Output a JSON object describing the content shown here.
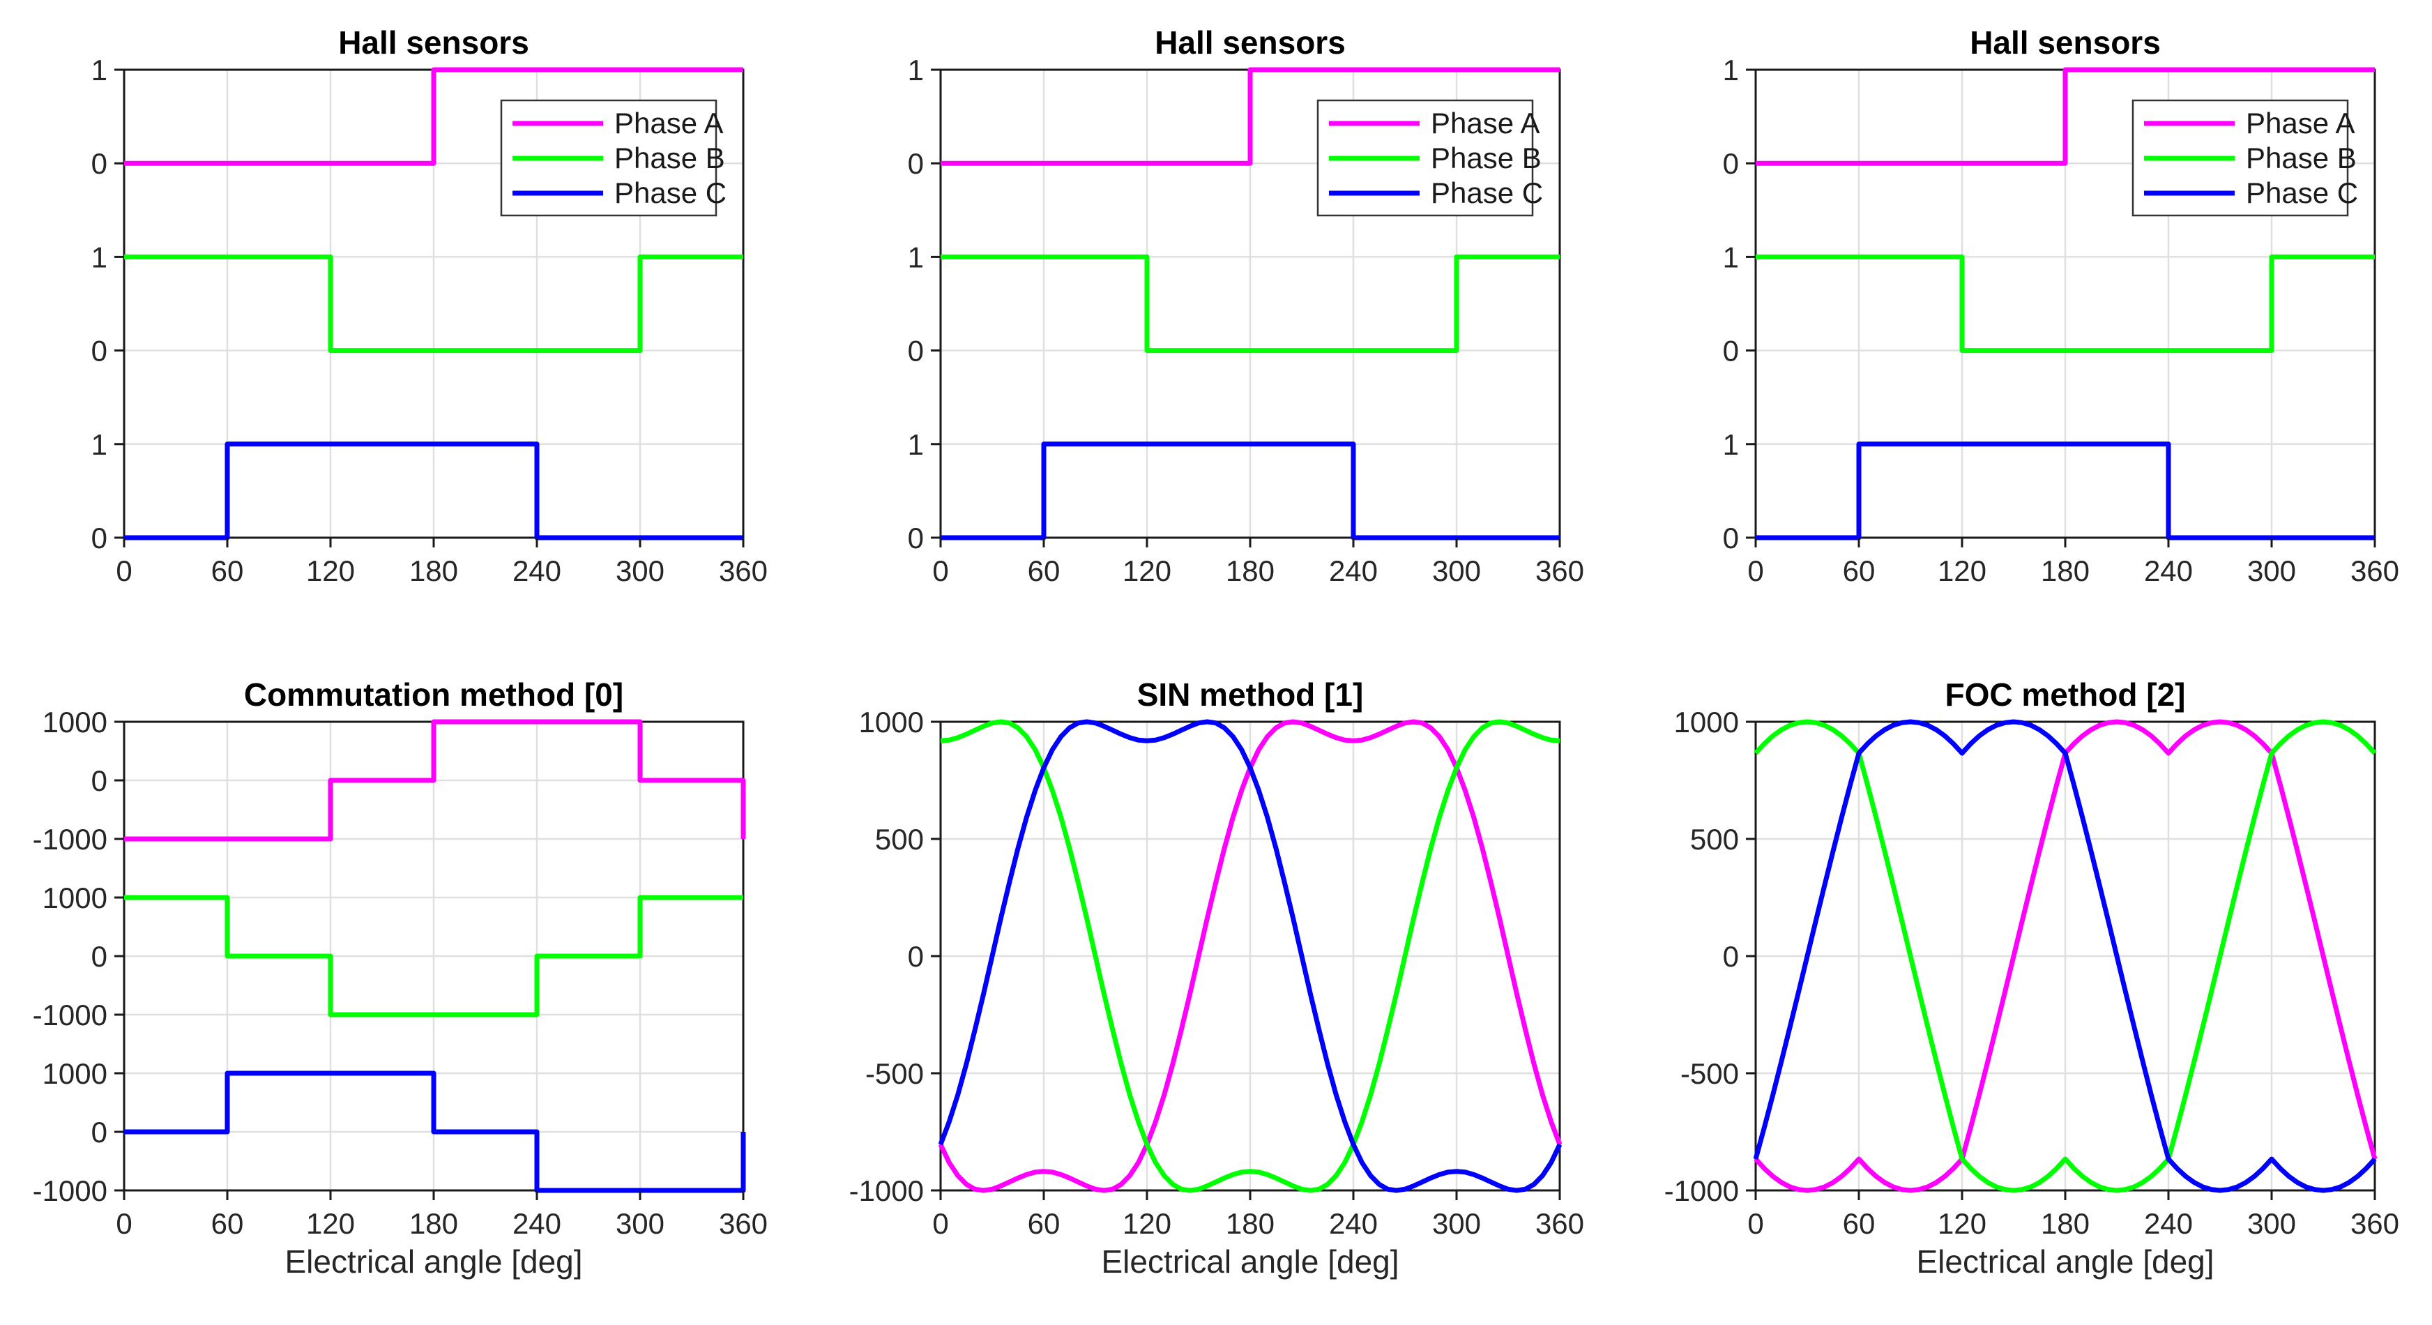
{
  "figure": {
    "xlabel": "Electrical angle [deg]",
    "background": "#FFFFFF"
  },
  "colors": {
    "phase_a": "#FF00FF",
    "phase_b": "#00FF00",
    "phase_c": "#0000FF",
    "grid": "#E0E0E0",
    "axis": "#1A1A1A",
    "tick_label": "#262626",
    "title": "#000000",
    "legend_border": "#333333"
  },
  "legend": {
    "items": [
      "Phase A",
      "Phase B",
      "Phase C"
    ]
  },
  "chart_data": [
    {
      "id": "hall-1",
      "type": "line",
      "title": "Hall sensors",
      "row": 0,
      "col": 0,
      "xlim": [
        0,
        360
      ],
      "x_ticks": [
        0,
        60,
        120,
        180,
        240,
        300,
        360
      ],
      "y_axis": "bands",
      "band_ticks": [
        1,
        0
      ],
      "band_tick_labels": [
        "1",
        "0",
        "1",
        "0",
        "1",
        "0"
      ],
      "legend": true,
      "show_xlabel": false,
      "grid": true,
      "series": [
        {
          "id": "phase-a",
          "name": "Phase A",
          "color": "#FF00FF",
          "band": 0,
          "points": [
            [
              0,
              0
            ],
            [
              180,
              0
            ],
            [
              180,
              1
            ],
            [
              360,
              1
            ]
          ]
        },
        {
          "id": "phase-b",
          "name": "Phase B",
          "color": "#00FF00",
          "band": 1,
          "points": [
            [
              0,
              1
            ],
            [
              120,
              1
            ],
            [
              120,
              0
            ],
            [
              300,
              0
            ],
            [
              300,
              1
            ],
            [
              360,
              1
            ]
          ]
        },
        {
          "id": "phase-c",
          "name": "Phase C",
          "color": "#0000FF",
          "band": 2,
          "points": [
            [
              0,
              0
            ],
            [
              60,
              0
            ],
            [
              60,
              1
            ],
            [
              240,
              1
            ],
            [
              240,
              0
            ],
            [
              360,
              0
            ]
          ]
        }
      ]
    },
    {
      "id": "hall-2",
      "type": "line",
      "title": "Hall sensors",
      "row": 0,
      "col": 1,
      "xlim": [
        0,
        360
      ],
      "x_ticks": [
        0,
        60,
        120,
        180,
        240,
        300,
        360
      ],
      "y_axis": "bands",
      "band_ticks": [
        1,
        0
      ],
      "band_tick_labels": [
        "1",
        "0",
        "1",
        "0",
        "1",
        "0"
      ],
      "legend": true,
      "show_xlabel": false,
      "grid": true,
      "series": [
        {
          "id": "phase-a",
          "name": "Phase A",
          "color": "#FF00FF",
          "band": 0,
          "points": [
            [
              0,
              0
            ],
            [
              180,
              0
            ],
            [
              180,
              1
            ],
            [
              360,
              1
            ]
          ]
        },
        {
          "id": "phase-b",
          "name": "Phase B",
          "color": "#00FF00",
          "band": 1,
          "points": [
            [
              0,
              1
            ],
            [
              120,
              1
            ],
            [
              120,
              0
            ],
            [
              300,
              0
            ],
            [
              300,
              1
            ],
            [
              360,
              1
            ]
          ]
        },
        {
          "id": "phase-c",
          "name": "Phase C",
          "color": "#0000FF",
          "band": 2,
          "points": [
            [
              0,
              0
            ],
            [
              60,
              0
            ],
            [
              60,
              1
            ],
            [
              240,
              1
            ],
            [
              240,
              0
            ],
            [
              360,
              0
            ]
          ]
        }
      ]
    },
    {
      "id": "hall-3",
      "type": "line",
      "title": "Hall sensors",
      "row": 0,
      "col": 2,
      "xlim": [
        0,
        360
      ],
      "x_ticks": [
        0,
        60,
        120,
        180,
        240,
        300,
        360
      ],
      "y_axis": "bands",
      "band_ticks": [
        1,
        0
      ],
      "band_tick_labels": [
        "1",
        "0",
        "1",
        "0",
        "1",
        "0"
      ],
      "legend": true,
      "show_xlabel": false,
      "grid": true,
      "series": [
        {
          "id": "phase-a",
          "name": "Phase A",
          "color": "#FF00FF",
          "band": 0,
          "points": [
            [
              0,
              0
            ],
            [
              180,
              0
            ],
            [
              180,
              1
            ],
            [
              360,
              1
            ]
          ]
        },
        {
          "id": "phase-b",
          "name": "Phase B",
          "color": "#00FF00",
          "band": 1,
          "points": [
            [
              0,
              1
            ],
            [
              120,
              1
            ],
            [
              120,
              0
            ],
            [
              300,
              0
            ],
            [
              300,
              1
            ],
            [
              360,
              1
            ]
          ]
        },
        {
          "id": "phase-c",
          "name": "Phase C",
          "color": "#0000FF",
          "band": 2,
          "points": [
            [
              0,
              0
            ],
            [
              60,
              0
            ],
            [
              60,
              1
            ],
            [
              240,
              1
            ],
            [
              240,
              0
            ],
            [
              360,
              0
            ]
          ]
        }
      ]
    },
    {
      "id": "commutation",
      "type": "line",
      "title": "Commutation method [0]",
      "row": 1,
      "col": 0,
      "xlim": [
        0,
        360
      ],
      "x_ticks": [
        0,
        60,
        120,
        180,
        240,
        300,
        360
      ],
      "y_axis": "bands",
      "band_ticks": [
        1000,
        0,
        -1000
      ],
      "band_tick_labels": [
        "1000",
        "0",
        "-1000",
        "1000",
        "0",
        "-1000",
        "1000",
        "0",
        "-1000"
      ],
      "legend": false,
      "show_xlabel": true,
      "grid": true,
      "series": [
        {
          "id": "phase-a",
          "name": "Phase A",
          "color": "#FF00FF",
          "band": 0,
          "points": [
            [
              0,
              -1000
            ],
            [
              120,
              -1000
            ],
            [
              120,
              0
            ],
            [
              180,
              0
            ],
            [
              180,
              1000
            ],
            [
              300,
              1000
            ],
            [
              300,
              0
            ],
            [
              360,
              0
            ],
            [
              360,
              -1000
            ]
          ]
        },
        {
          "id": "phase-b",
          "name": "Phase B",
          "color": "#00FF00",
          "band": 1,
          "points": [
            [
              0,
              1000
            ],
            [
              60,
              1000
            ],
            [
              60,
              0
            ],
            [
              120,
              0
            ],
            [
              120,
              -1000
            ],
            [
              240,
              -1000
            ],
            [
              240,
              0
            ],
            [
              300,
              0
            ],
            [
              300,
              1000
            ],
            [
              360,
              1000
            ]
          ]
        },
        {
          "id": "phase-c",
          "name": "Phase C",
          "color": "#0000FF",
          "band": 2,
          "points": [
            [
              0,
              0
            ],
            [
              60,
              0
            ],
            [
              60,
              1000
            ],
            [
              180,
              1000
            ],
            [
              180,
              0
            ],
            [
              240,
              0
            ],
            [
              240,
              -1000
            ],
            [
              360,
              -1000
            ],
            [
              360,
              0
            ]
          ]
        }
      ]
    },
    {
      "id": "sin",
      "type": "line",
      "title": "SIN method [1]",
      "row": 1,
      "col": 1,
      "xlim": [
        0,
        360
      ],
      "x_ticks": [
        0,
        60,
        120,
        180,
        240,
        300,
        360
      ],
      "y_axis": "linear",
      "ylim": [
        -1000,
        1000
      ],
      "y_ticks": [
        1000,
        500,
        0,
        -500,
        -1000
      ],
      "y_tick_labels": [
        "1000",
        "500",
        "0",
        "-500",
        "-1000"
      ],
      "legend": false,
      "show_xlabel": true,
      "grid": true,
      "x_start": 0,
      "x_step": 5,
      "series": [
        {
          "id": "phase-a",
          "name": "Phase A",
          "color": "#FF00FF",
          "x_start": 0,
          "x_step": 5,
          "y": [
            -804,
            -881,
            -937,
            -974,
            -995,
            -1000,
            -995,
            -981,
            -964,
            -947,
            -932,
            -922,
            -919,
            -922,
            -932,
            -947,
            -964,
            -981,
            -995,
            -1000,
            -995,
            -974,
            -937,
            -881,
            -804,
            -707,
            -592,
            -460,
            -314,
            -160,
            0,
            160,
            314,
            460,
            592,
            707,
            804,
            881,
            937,
            974,
            995,
            1000,
            995,
            981,
            964,
            947,
            932,
            922,
            919,
            922,
            932,
            947,
            964,
            981,
            995,
            1000,
            995,
            974,
            937,
            881,
            804,
            707,
            592,
            460,
            314,
            160,
            0,
            -160,
            -314,
            -460,
            -592,
            -707,
            -804
          ]
        },
        {
          "id": "phase-b",
          "name": "Phase B",
          "color": "#00FF00",
          "x_start": 0,
          "x_step": 5,
          "y": [
            919,
            922,
            932,
            947,
            964,
            981,
            995,
            1000,
            995,
            974,
            937,
            881,
            804,
            707,
            592,
            460,
            314,
            160,
            0,
            -160,
            -314,
            -460,
            -592,
            -707,
            -804,
            -881,
            -937,
            -974,
            -995,
            -1000,
            -995,
            -981,
            -964,
            -947,
            -932,
            -922,
            -919,
            -922,
            -932,
            -947,
            -964,
            -981,
            -995,
            -1000,
            -995,
            -974,
            -937,
            -881,
            -804,
            -707,
            -592,
            -460,
            -314,
            -160,
            0,
            160,
            314,
            460,
            592,
            707,
            804,
            881,
            937,
            974,
            995,
            1000,
            995,
            981,
            964,
            947,
            932,
            922,
            919
          ]
        },
        {
          "id": "phase-c",
          "name": "Phase C",
          "color": "#0000FF",
          "x_start": 0,
          "x_step": 5,
          "y": [
            -804,
            -707,
            -592,
            -460,
            -314,
            -160,
            0,
            160,
            314,
            460,
            592,
            707,
            804,
            881,
            937,
            974,
            995,
            1000,
            995,
            981,
            964,
            947,
            932,
            922,
            919,
            922,
            932,
            947,
            964,
            981,
            995,
            1000,
            995,
            974,
            937,
            881,
            804,
            707,
            592,
            460,
            314,
            160,
            0,
            -160,
            -314,
            -460,
            -592,
            -707,
            -804,
            -881,
            -937,
            -974,
            -995,
            -1000,
            -995,
            -981,
            -964,
            -947,
            -932,
            -922,
            -919,
            -922,
            -932,
            -947,
            -964,
            -981,
            -995,
            -1000,
            -995,
            -974,
            -937,
            -881,
            -804
          ]
        }
      ]
    },
    {
      "id": "foc",
      "type": "line",
      "title": "FOC method [2]",
      "row": 1,
      "col": 2,
      "xlim": [
        0,
        360
      ],
      "x_ticks": [
        0,
        60,
        120,
        180,
        240,
        300,
        360
      ],
      "y_axis": "linear",
      "ylim": [
        -1000,
        1000
      ],
      "y_ticks": [
        1000,
        500,
        0,
        -500,
        -1000
      ],
      "y_tick_labels": [
        "1000",
        "500",
        "0",
        "-500",
        "-1000"
      ],
      "legend": false,
      "show_xlabel": true,
      "grid": true,
      "x_start": 0,
      "x_step": 5,
      "series": [
        {
          "id": "phase-a",
          "name": "Phase A",
          "color": "#FF00FF",
          "x_start": 0,
          "x_step": 5,
          "y": [
            -866,
            -906,
            -940,
            -966,
            -985,
            -996,
            -1000,
            -996,
            -985,
            -966,
            -940,
            -906,
            -866,
            -906,
            -940,
            -966,
            -985,
            -996,
            -1000,
            -996,
            -985,
            -966,
            -940,
            -906,
            -866,
            -732,
            -592,
            -448,
            -301,
            -151,
            0,
            151,
            301,
            448,
            592,
            732,
            866,
            906,
            940,
            966,
            985,
            996,
            1000,
            996,
            985,
            966,
            940,
            906,
            866,
            906,
            940,
            966,
            985,
            996,
            1000,
            996,
            985,
            966,
            940,
            906,
            866,
            732,
            592,
            448,
            301,
            151,
            0,
            -151,
            -301,
            -448,
            -592,
            -732,
            -866
          ]
        },
        {
          "id": "phase-b",
          "name": "Phase B",
          "color": "#00FF00",
          "x_start": 0,
          "x_step": 5,
          "y": [
            866,
            906,
            940,
            966,
            985,
            996,
            1000,
            996,
            985,
            966,
            940,
            906,
            866,
            732,
            592,
            448,
            301,
            151,
            0,
            -151,
            -301,
            -448,
            -592,
            -732,
            -866,
            -906,
            -940,
            -966,
            -985,
            -996,
            -1000,
            -996,
            -985,
            -966,
            -940,
            -906,
            -866,
            -906,
            -940,
            -966,
            -985,
            -996,
            -1000,
            -996,
            -985,
            -966,
            -940,
            -906,
            -866,
            -732,
            -592,
            -448,
            -301,
            -151,
            0,
            151,
            301,
            448,
            592,
            732,
            866,
            906,
            940,
            966,
            985,
            996,
            1000,
            996,
            985,
            966,
            940,
            906,
            866
          ]
        },
        {
          "id": "phase-c",
          "name": "Phase C",
          "color": "#0000FF",
          "x_start": 0,
          "x_step": 5,
          "y": [
            -866,
            -732,
            -592,
            -448,
            -301,
            -151,
            0,
            151,
            301,
            448,
            592,
            732,
            866,
            906,
            940,
            966,
            985,
            996,
            1000,
            996,
            985,
            966,
            940,
            906,
            866,
            906,
            940,
            966,
            985,
            996,
            1000,
            996,
            985,
            966,
            940,
            906,
            866,
            732,
            592,
            448,
            301,
            151,
            0,
            -151,
            -301,
            -448,
            -592,
            -732,
            -866,
            -906,
            -940,
            -966,
            -985,
            -996,
            -1000,
            -996,
            -985,
            -966,
            -940,
            -906,
            -866,
            -906,
            -940,
            -966,
            -985,
            -996,
            -1000,
            -996,
            -985,
            -966,
            -940,
            -906,
            -866
          ]
        }
      ]
    }
  ]
}
